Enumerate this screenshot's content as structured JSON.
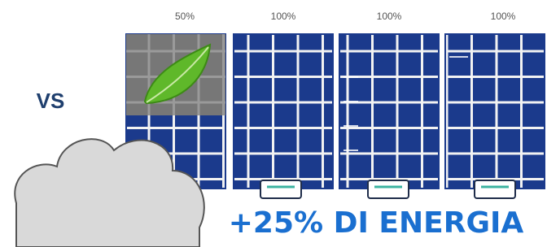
{
  "panels": [
    {
      "label": "50%"
    },
    {
      "label": "100%"
    },
    {
      "label": "100%"
    },
    {
      "label": "100%"
    }
  ],
  "comparison": "VS",
  "headline": "+25% DI ENERGIA"
}
